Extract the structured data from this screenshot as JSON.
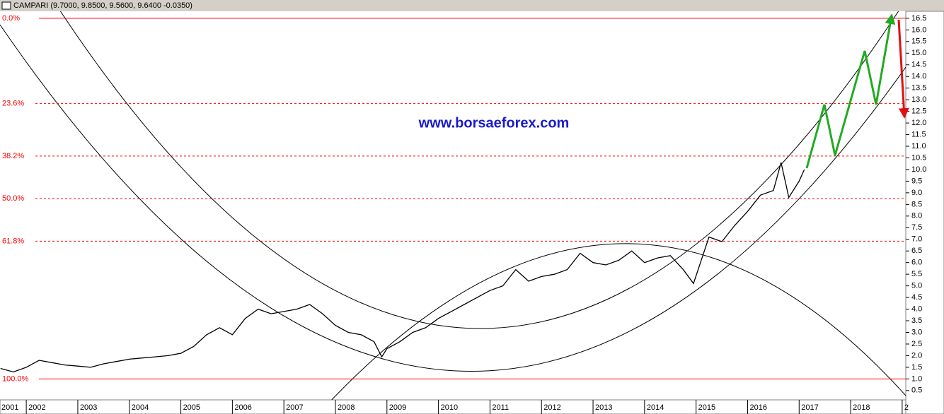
{
  "chart_data": {
    "type": "line",
    "title": "CAMPARI (9.7000, 9.8500, 9.5600, 9.6400 -0.0350)",
    "watermark": "www.borsaeforex.com",
    "x": [
      2001.5,
      2001.75,
      2002.0,
      2002.25,
      2002.5,
      2002.75,
      2003.0,
      2003.25,
      2003.5,
      2003.75,
      2004.0,
      2004.25,
      2004.5,
      2004.75,
      2005.0,
      2005.25,
      2005.5,
      2005.75,
      2006.0,
      2006.25,
      2006.5,
      2006.75,
      2007.0,
      2007.25,
      2007.5,
      2007.75,
      2008.0,
      2008.25,
      2008.5,
      2008.75,
      2008.9,
      2009.0,
      2009.25,
      2009.5,
      2009.75,
      2010.0,
      2010.25,
      2010.5,
      2010.75,
      2011.0,
      2011.25,
      2011.5,
      2011.75,
      2012.0,
      2012.25,
      2012.5,
      2012.75,
      2013.0,
      2013.25,
      2013.5,
      2013.75,
      2014.0,
      2014.25,
      2014.5,
      2014.75,
      2014.95,
      2015.25,
      2015.5,
      2015.75,
      2016.0,
      2016.25,
      2016.5,
      2016.65,
      2016.8,
      2017.0,
      2017.1
    ],
    "series": [
      {
        "color": "#000000",
        "values": [
          1.45,
          1.3,
          1.5,
          1.8,
          1.7,
          1.6,
          1.55,
          1.5,
          1.65,
          1.75,
          1.85,
          1.9,
          1.95,
          2.0,
          2.1,
          2.4,
          2.9,
          3.2,
          2.9,
          3.6,
          4.0,
          3.8,
          3.9,
          4.0,
          4.2,
          3.8,
          3.3,
          3.0,
          2.9,
          2.6,
          1.95,
          2.3,
          2.6,
          3.0,
          3.2,
          3.6,
          3.9,
          4.2,
          4.5,
          4.8,
          5.0,
          5.7,
          5.2,
          5.4,
          5.5,
          5.7,
          6.4,
          6.0,
          5.9,
          6.1,
          6.5,
          6.0,
          6.2,
          6.3,
          5.7,
          5.1,
          7.1,
          6.9,
          7.6,
          8.2,
          8.9,
          9.1,
          10.3,
          8.8,
          9.5,
          10.0
        ]
      }
    ],
    "xlim": [
      2001.49,
      2019.07
    ],
    "xticks": [
      2001,
      2002,
      2003,
      2004,
      2005,
      2006,
      2007,
      2008,
      2009,
      2010,
      2011,
      2012,
      2013,
      2014,
      2015,
      2016,
      2017,
      2018,
      {
        "value": 2019,
        "label": "2"
      }
    ],
    "ylim": [
      0.1,
      16.8
    ],
    "yticks": [
      0.5,
      {
        "value": 1,
        "label": "1.0"
      },
      1.5,
      {
        "value": 2,
        "label": "2.0"
      },
      2.5,
      {
        "value": 3,
        "label": "3.0"
      },
      3.5,
      {
        "value": 4,
        "label": "4.0"
      },
      4.5,
      {
        "value": 5,
        "label": "5.0"
      },
      5.5,
      {
        "value": 6,
        "label": "6.0"
      },
      6.5,
      {
        "value": 7,
        "label": "7.0"
      },
      7.5,
      {
        "value": 8,
        "label": "8.0"
      },
      8.5,
      {
        "value": 9,
        "label": "9.0"
      },
      9.5,
      {
        "value": 10,
        "label": "10.0"
      },
      10.5,
      {
        "value": 11,
        "label": "11.0"
      },
      11.5,
      {
        "value": 12,
        "label": "12.0"
      },
      12.5,
      {
        "value": 13,
        "label": "13.0"
      },
      13.5,
      {
        "value": 14,
        "label": "14.0"
      },
      14.5,
      {
        "value": 15,
        "label": "15.0"
      },
      15.5,
      {
        "value": 16,
        "label": "16.0"
      },
      16.5
    ],
    "fib_color": "#ff0000",
    "fib_levels": [
      {
        "label": "0.0%",
        "value": 16.5
      },
      {
        "label": "23.6%",
        "value": 12.84
      },
      {
        "label": "38.2%",
        "value": 10.58
      },
      {
        "label": "50.0%",
        "value": 8.75
      },
      {
        "label": "61.8%",
        "value": 6.92
      },
      {
        "label": "100.0%",
        "value": 1.0
      }
    ]
  }
}
